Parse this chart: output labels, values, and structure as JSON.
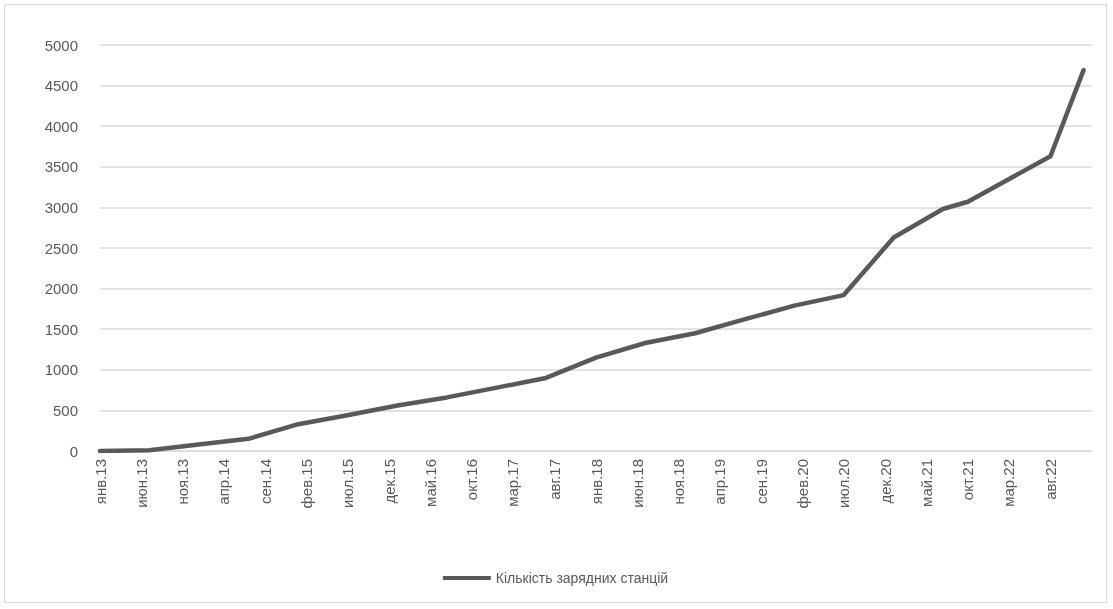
{
  "chart_data": {
    "type": "line",
    "x": [
      "2013-01",
      "2013-07",
      "2014-07",
      "2015-01",
      "2015-07",
      "2016-01",
      "2016-07",
      "2017-01",
      "2017-07",
      "2018-01",
      "2018-07",
      "2019-01",
      "2019-07",
      "2020-01",
      "2020-07",
      "2021-01",
      "2021-07",
      "2021-10",
      "2022-08",
      "2022-12"
    ],
    "series": [
      {
        "name": "Кількість зарядних станцій",
        "color": "#595959",
        "values": [
          0,
          10,
          150,
          330,
          440,
          560,
          660,
          780,
          900,
          1150,
          1330,
          1450,
          1620,
          1790,
          1920,
          2630,
          2980,
          3070,
          3630,
          4690
        ]
      }
    ],
    "xlim": [
      "2013-01",
      "2023-01"
    ],
    "xticks": [
      {
        "value": "2013-01",
        "label": "янв.13"
      },
      {
        "value": "2013-06",
        "label": "июн.13"
      },
      {
        "value": "2013-11",
        "label": "ноя.13"
      },
      {
        "value": "2014-04",
        "label": "апр.14"
      },
      {
        "value": "2014-09",
        "label": "сен.14"
      },
      {
        "value": "2015-02",
        "label": "фев.15"
      },
      {
        "value": "2015-07",
        "label": "июл.15"
      },
      {
        "value": "2015-12",
        "label": "дек.15"
      },
      {
        "value": "2016-05",
        "label": "май.16"
      },
      {
        "value": "2016-10",
        "label": "окт.16"
      },
      {
        "value": "2017-03",
        "label": "мар.17"
      },
      {
        "value": "2017-08",
        "label": "авг.17"
      },
      {
        "value": "2018-01",
        "label": "янв.18"
      },
      {
        "value": "2018-06",
        "label": "июн.18"
      },
      {
        "value": "2018-11",
        "label": "ноя.18"
      },
      {
        "value": "2019-04",
        "label": "апр.19"
      },
      {
        "value": "2019-09",
        "label": "сен.19"
      },
      {
        "value": "2020-02",
        "label": "фев.20"
      },
      {
        "value": "2020-07",
        "label": "июл.20"
      },
      {
        "value": "2020-12",
        "label": "дек.20"
      },
      {
        "value": "2021-05",
        "label": "май.21"
      },
      {
        "value": "2021-10",
        "label": "окт.21"
      },
      {
        "value": "2022-03",
        "label": "мар.22"
      },
      {
        "value": "2022-08",
        "label": "авг.22"
      }
    ],
    "ylim": [
      0,
      5000
    ],
    "yticks": [
      0,
      500,
      1000,
      1500,
      2000,
      2500,
      3000,
      3500,
      4000,
      4500,
      5000
    ],
    "grid": "y",
    "legend": "bottom",
    "marker": "none",
    "line_style": "solid"
  }
}
